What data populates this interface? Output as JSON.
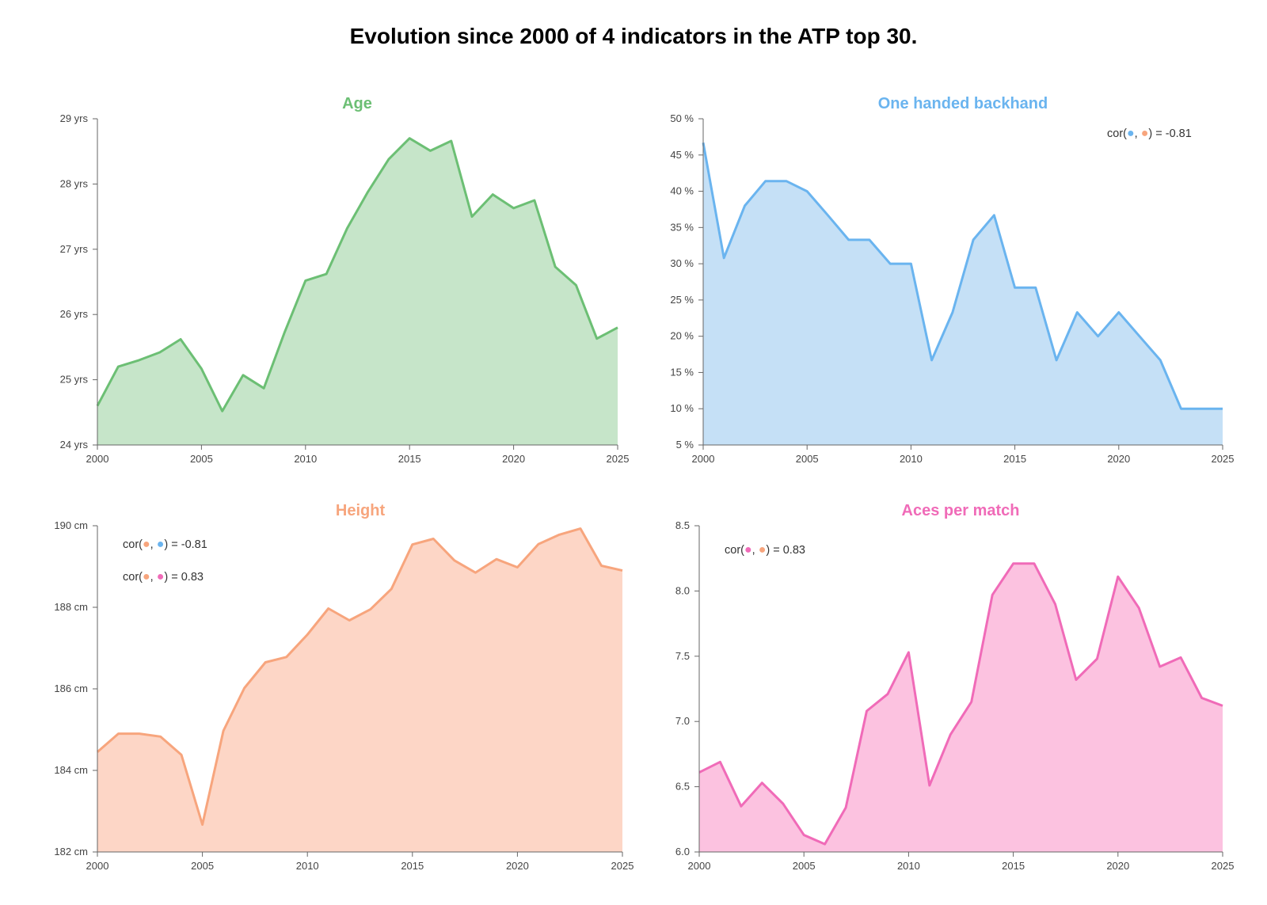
{
  "title": "Evolution since 2000 of 4 indicators in the ATP top 30.",
  "chart_data": [
    {
      "id": "age",
      "type": "area",
      "title": "Age",
      "color": "#6cbf74",
      "fill": "#c6e5c9",
      "x": [
        2000,
        2001,
        2002,
        2003,
        2004,
        2005,
        2006,
        2007,
        2008,
        2009,
        2010,
        2011,
        2012,
        2013,
        2014,
        2015,
        2016,
        2017,
        2018,
        2019,
        2020,
        2021,
        2022,
        2023,
        2024,
        2025
      ],
      "values": [
        24.6,
        25.2,
        25.3,
        25.42,
        25.62,
        25.17,
        24.52,
        25.07,
        24.87,
        25.73,
        26.52,
        26.62,
        27.32,
        27.88,
        28.38,
        28.7,
        28.51,
        28.66,
        27.5,
        27.84,
        27.63,
        27.75,
        26.73,
        26.45,
        25.63,
        25.8
      ],
      "ylim": [
        24,
        29
      ],
      "yticks": [
        "24 yrs",
        "25 yrs",
        "26 yrs",
        "27 yrs",
        "28 yrs",
        "29 yrs"
      ],
      "xticks": [
        "2000",
        "2005",
        "2010",
        "2015",
        "2020",
        "2025"
      ],
      "annotations": []
    },
    {
      "id": "one-handed-backhand",
      "type": "area",
      "title": "One handed backhand",
      "color": "#6ab4ef",
      "fill": "#c5e0f6",
      "x": [
        2000,
        2001,
        2002,
        2003,
        2004,
        2005,
        2006,
        2007,
        2008,
        2009,
        2010,
        2011,
        2012,
        2013,
        2014,
        2015,
        2016,
        2017,
        2018,
        2019,
        2020,
        2021,
        2022,
        2023,
        2024,
        2025
      ],
      "values": [
        46.7,
        30.8,
        38,
        41.4,
        41.4,
        40,
        36.7,
        33.3,
        33.3,
        30,
        30,
        16.7,
        23.3,
        33.3,
        36.7,
        26.7,
        26.7,
        16.7,
        23.3,
        20,
        23.3,
        20,
        16.7,
        10,
        10,
        10
      ],
      "ylim": [
        5,
        50
      ],
      "yticks": [
        "5 %",
        "10 %",
        "15 %",
        "20 %",
        "25 %",
        "30 %",
        "35 %",
        "40 %",
        "45 %",
        "50 %"
      ],
      "xticks": [
        "2000",
        "2005",
        "2010",
        "2015",
        "2020",
        "2025"
      ],
      "annotations": [
        {
          "prefix": "cor(",
          "dots": [
            "#6ab4ef",
            "#f7a57d"
          ],
          "suffix": ") = -0.81"
        }
      ]
    },
    {
      "id": "height",
      "type": "area",
      "title": "Height",
      "color": "#f7a57d",
      "fill": "#fdd6c6",
      "x": [
        2000,
        2001,
        2002,
        2003,
        2004,
        2005,
        2006,
        2007,
        2008,
        2009,
        2010,
        2011,
        2012,
        2013,
        2014,
        2015,
        2016,
        2017,
        2018,
        2019,
        2020,
        2021,
        2022,
        2023,
        2024,
        2025
      ],
      "values": [
        184.45,
        184.9,
        184.9,
        184.83,
        184.38,
        182.67,
        184.97,
        186.02,
        186.65,
        186.78,
        187.33,
        187.97,
        187.68,
        187.95,
        188.45,
        189.54,
        189.68,
        189.15,
        188.85,
        189.18,
        188.98,
        189.55,
        189.78,
        189.93,
        189.02,
        188.9
      ],
      "ylim": [
        182,
        190
      ],
      "yticks": [
        "182 cm",
        "184 cm",
        "186 cm",
        "188 cm",
        "190 cm"
      ],
      "xticks": [
        "2000",
        "2005",
        "2010",
        "2015",
        "2020",
        "2025"
      ],
      "annotations": [
        {
          "prefix": "cor(",
          "dots": [
            "#f7a57d",
            "#6ab4ef"
          ],
          "suffix": ") = -0.81"
        },
        {
          "prefix": "cor(",
          "dots": [
            "#f7a57d",
            "#f06bb8"
          ],
          "suffix": ") = 0.83"
        }
      ]
    },
    {
      "id": "aces-per-match",
      "type": "area",
      "title": "Aces per match",
      "color": "#f06bb8",
      "fill": "#fcc2e0",
      "x": [
        2000,
        2001,
        2002,
        2003,
        2004,
        2005,
        2006,
        2007,
        2008,
        2009,
        2010,
        2011,
        2012,
        2013,
        2014,
        2015,
        2016,
        2017,
        2018,
        2019,
        2020,
        2021,
        2022,
        2023,
        2024,
        2025
      ],
      "values": [
        6.61,
        6.69,
        6.35,
        6.53,
        6.37,
        6.13,
        6.06,
        6.34,
        7.08,
        7.21,
        7.53,
        6.51,
        6.9,
        7.15,
        7.97,
        8.21,
        8.21,
        7.9,
        7.32,
        7.48,
        8.11,
        7.87,
        7.42,
        7.49,
        7.18,
        7.12
      ],
      "ylim": [
        6.0,
        8.5
      ],
      "yticks": [
        "6.0",
        "6.5",
        "7.0",
        "7.5",
        "8.0",
        "8.5"
      ],
      "xticks": [
        "2000",
        "2005",
        "2010",
        "2015",
        "2020",
        "2025"
      ],
      "annotations": [
        {
          "prefix": "cor(",
          "dots": [
            "#f06bb8",
            "#f7a57d"
          ],
          "suffix": ") = 0.83"
        }
      ]
    }
  ]
}
